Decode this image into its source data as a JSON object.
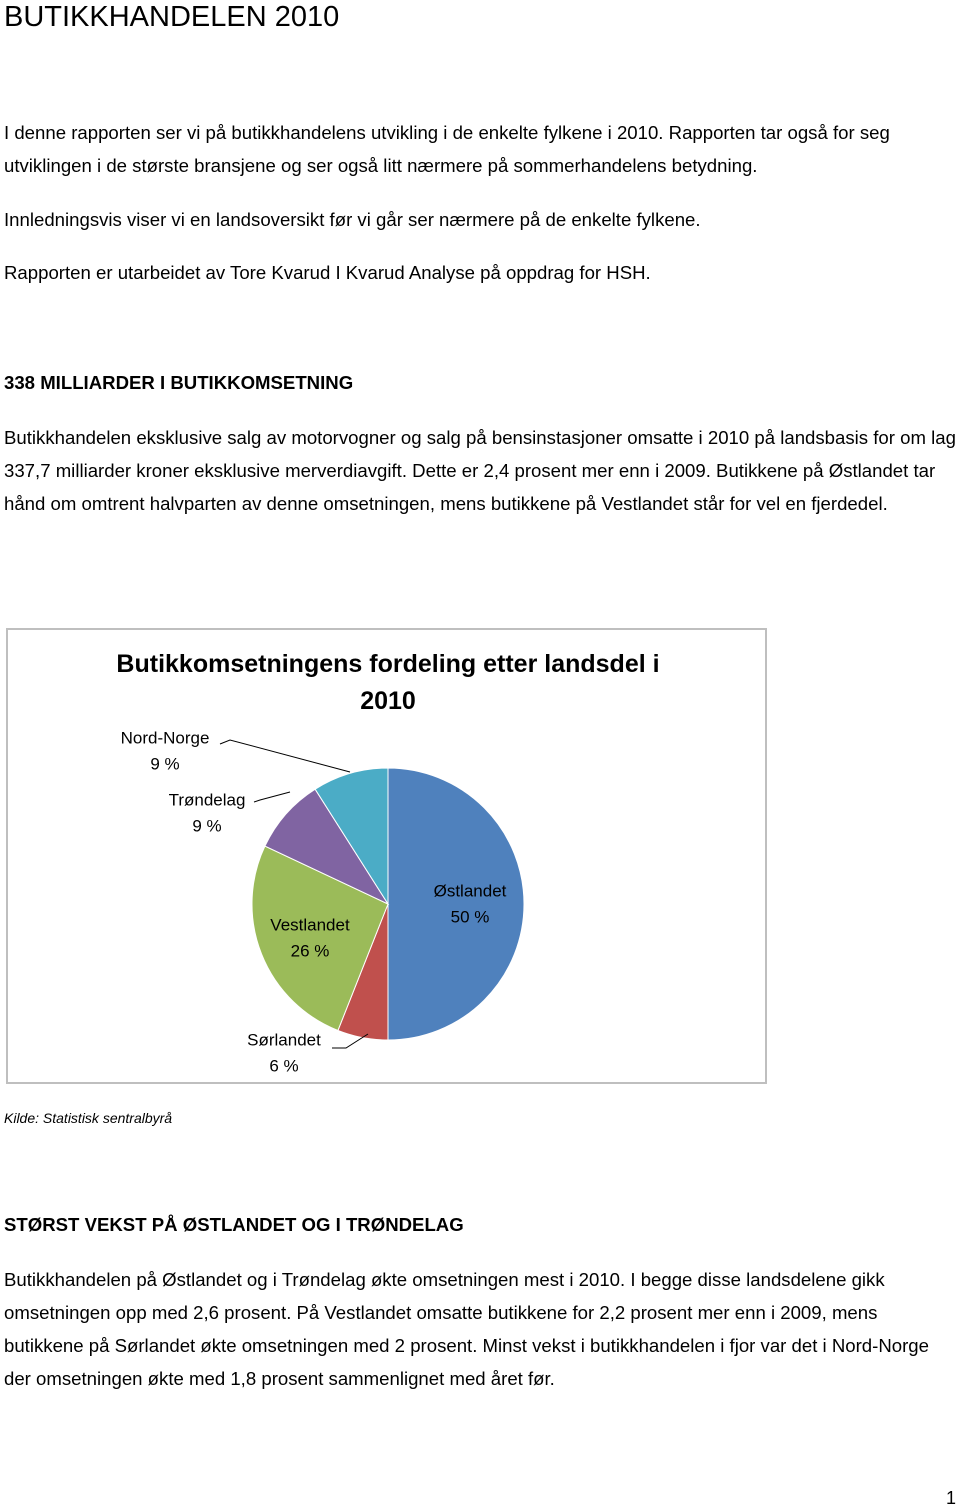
{
  "header": {
    "title": "BUTIKKHANDELEN 2010"
  },
  "intro": [
    "I denne rapporten ser vi på butikkhandelens utvikling i de enkelte fylkene i 2010. Rapporten tar også for seg utviklingen i de største bransjene og ser også litt nærmere på sommerhandelens betydning.",
    "Innledningsvis viser vi en landsoversikt før vi går ser nærmere på de enkelte fylkene.",
    "Rapporten er utarbeidet av Tore Kvarud I Kvarud Analyse på oppdrag for HSH."
  ],
  "section1": {
    "heading": "338 MILLIARDER I BUTIKKOMSETNING",
    "text": "Butikkhandelen eksklusive salg av motorvogner og salg på bensinstasjoner omsatte i 2010 på landsbasis for om lag 337,7 milliarder kroner eksklusive merverdiavgift. Dette er 2,4 prosent mer enn i 2009. Butikkene på Østlandet tar hånd om omtrent halvparten av denne omsetningen, mens butikkene på Vestlandet står for vel en fjerdedel."
  },
  "chart_data": {
    "type": "pie",
    "title": "Butikkomsetningens fordeling etter landsdel i 2010",
    "categories": [
      "Østlandet",
      "Sørlandet",
      "Vestlandet",
      "Trøndelag",
      "Nord-Norge"
    ],
    "values": [
      50,
      6,
      26,
      9,
      9
    ],
    "value_labels": [
      "50 %",
      "6 %",
      "26 %",
      "9 %",
      "9 %"
    ],
    "colors": [
      "#4f81bd",
      "#c0504d",
      "#9bbb59",
      "#8064a2",
      "#4bacc6"
    ]
  },
  "source": "Kilde: Statistisk sentralbyrå",
  "section2": {
    "heading": "STØRST VEKST PÅ ØSTLANDET OG I TRØNDELAG",
    "text": "Butikkhandelen på Østlandet og i Trøndelag økte omsetningen mest i 2010. I begge disse landsdelene gikk omsetningen opp med 2,6 prosent. På Vestlandet omsatte butikkene for 2,2 prosent mer enn i 2009, mens butikkene på Sørlandet økte omsetningen med 2 prosent. Minst vekst i butikkhandelen i fjor var det i Nord-Norge der omsetningen økte med 1,8 prosent sammenlignet med året før."
  },
  "page_number": "1"
}
